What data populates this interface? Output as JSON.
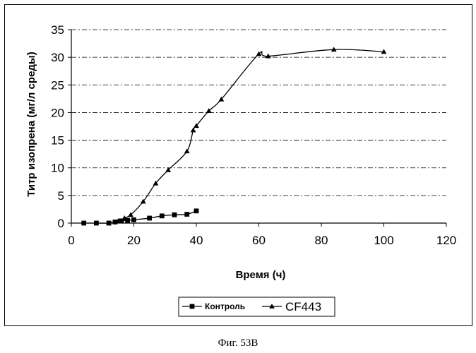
{
  "caption": "Фиг. 53В",
  "chart_data": {
    "type": "line",
    "xlabel": "Время (ч)",
    "ylabel": "Титр изопрена (мг/л среды)",
    "xlim": [
      0,
      120
    ],
    "ylim": [
      0,
      35
    ],
    "xticks": [
      0,
      20,
      40,
      60,
      80,
      100,
      120
    ],
    "yticks": [
      0,
      5,
      10,
      15,
      20,
      25,
      30,
      35
    ],
    "grid": "horizontal dashed",
    "legend_position": "bottom-center",
    "series": [
      {
        "name": "Контроль",
        "marker": "square",
        "color": "#000000",
        "x": [
          4,
          8,
          12,
          14,
          16,
          18,
          20,
          25,
          29,
          33,
          37,
          40
        ],
        "y": [
          0,
          0,
          0,
          0.2,
          0.4,
          0.5,
          0.6,
          0.9,
          1.3,
          1.5,
          1.6,
          2.2
        ]
      },
      {
        "name": "CF443",
        "marker": "triangle",
        "color": "#000000",
        "x": [
          12,
          15,
          17,
          19,
          23,
          27,
          31,
          37,
          39,
          40,
          44,
          48,
          60,
          63,
          84,
          100
        ],
        "y": [
          0,
          0.4,
          0.9,
          1.5,
          3.9,
          7.2,
          9.6,
          13.0,
          16.8,
          17.6,
          20.3,
          22.4,
          30.6,
          30.2,
          31.4,
          31.0
        ]
      }
    ]
  }
}
